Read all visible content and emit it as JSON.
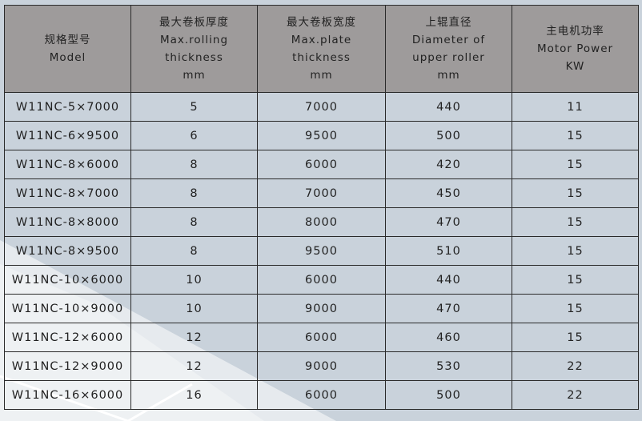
{
  "colors": {
    "header_bg": "#9e9b9b",
    "body_bg": "#c9d2db",
    "border": "#2a2a2a"
  },
  "headers": [
    {
      "lines": [
        "规格型号",
        "Model"
      ]
    },
    {
      "lines": [
        "最大卷板厚度",
        "Max.rolling",
        "thickness",
        "mm"
      ]
    },
    {
      "lines": [
        "最大卷板宽度",
        "Max.plate",
        "thickness",
        "mm"
      ]
    },
    {
      "lines": [
        "上辊直径",
        "Diameter of",
        "upper roller",
        "mm"
      ]
    },
    {
      "lines": [
        "主电机功率",
        "Motor Power",
        "KW"
      ]
    }
  ],
  "rows": [
    [
      "W11NC-5×7000",
      "5",
      "7000",
      "440",
      "11"
    ],
    [
      "W11NC-6×9500",
      "6",
      "9500",
      "500",
      "15"
    ],
    [
      "W11NC-8×6000",
      "8",
      "6000",
      "420",
      "15"
    ],
    [
      "W11NC-8×7000",
      "8",
      "7000",
      "450",
      "15"
    ],
    [
      "W11NC-8×8000",
      "8",
      "8000",
      "470",
      "15"
    ],
    [
      "W11NC-8×9500",
      "8",
      "9500",
      "510",
      "15"
    ],
    [
      "W11NC-10×6000",
      "10",
      "6000",
      "440",
      "15"
    ],
    [
      "W11NC-10×9000",
      "10",
      "9000",
      "470",
      "15"
    ],
    [
      "W11NC-12×6000",
      "12",
      "6000",
      "460",
      "15"
    ],
    [
      "W11NC-12×9000",
      "12",
      "9000",
      "530",
      "22"
    ],
    [
      "W11NC-16×6000",
      "16",
      "6000",
      "500",
      "22"
    ]
  ]
}
